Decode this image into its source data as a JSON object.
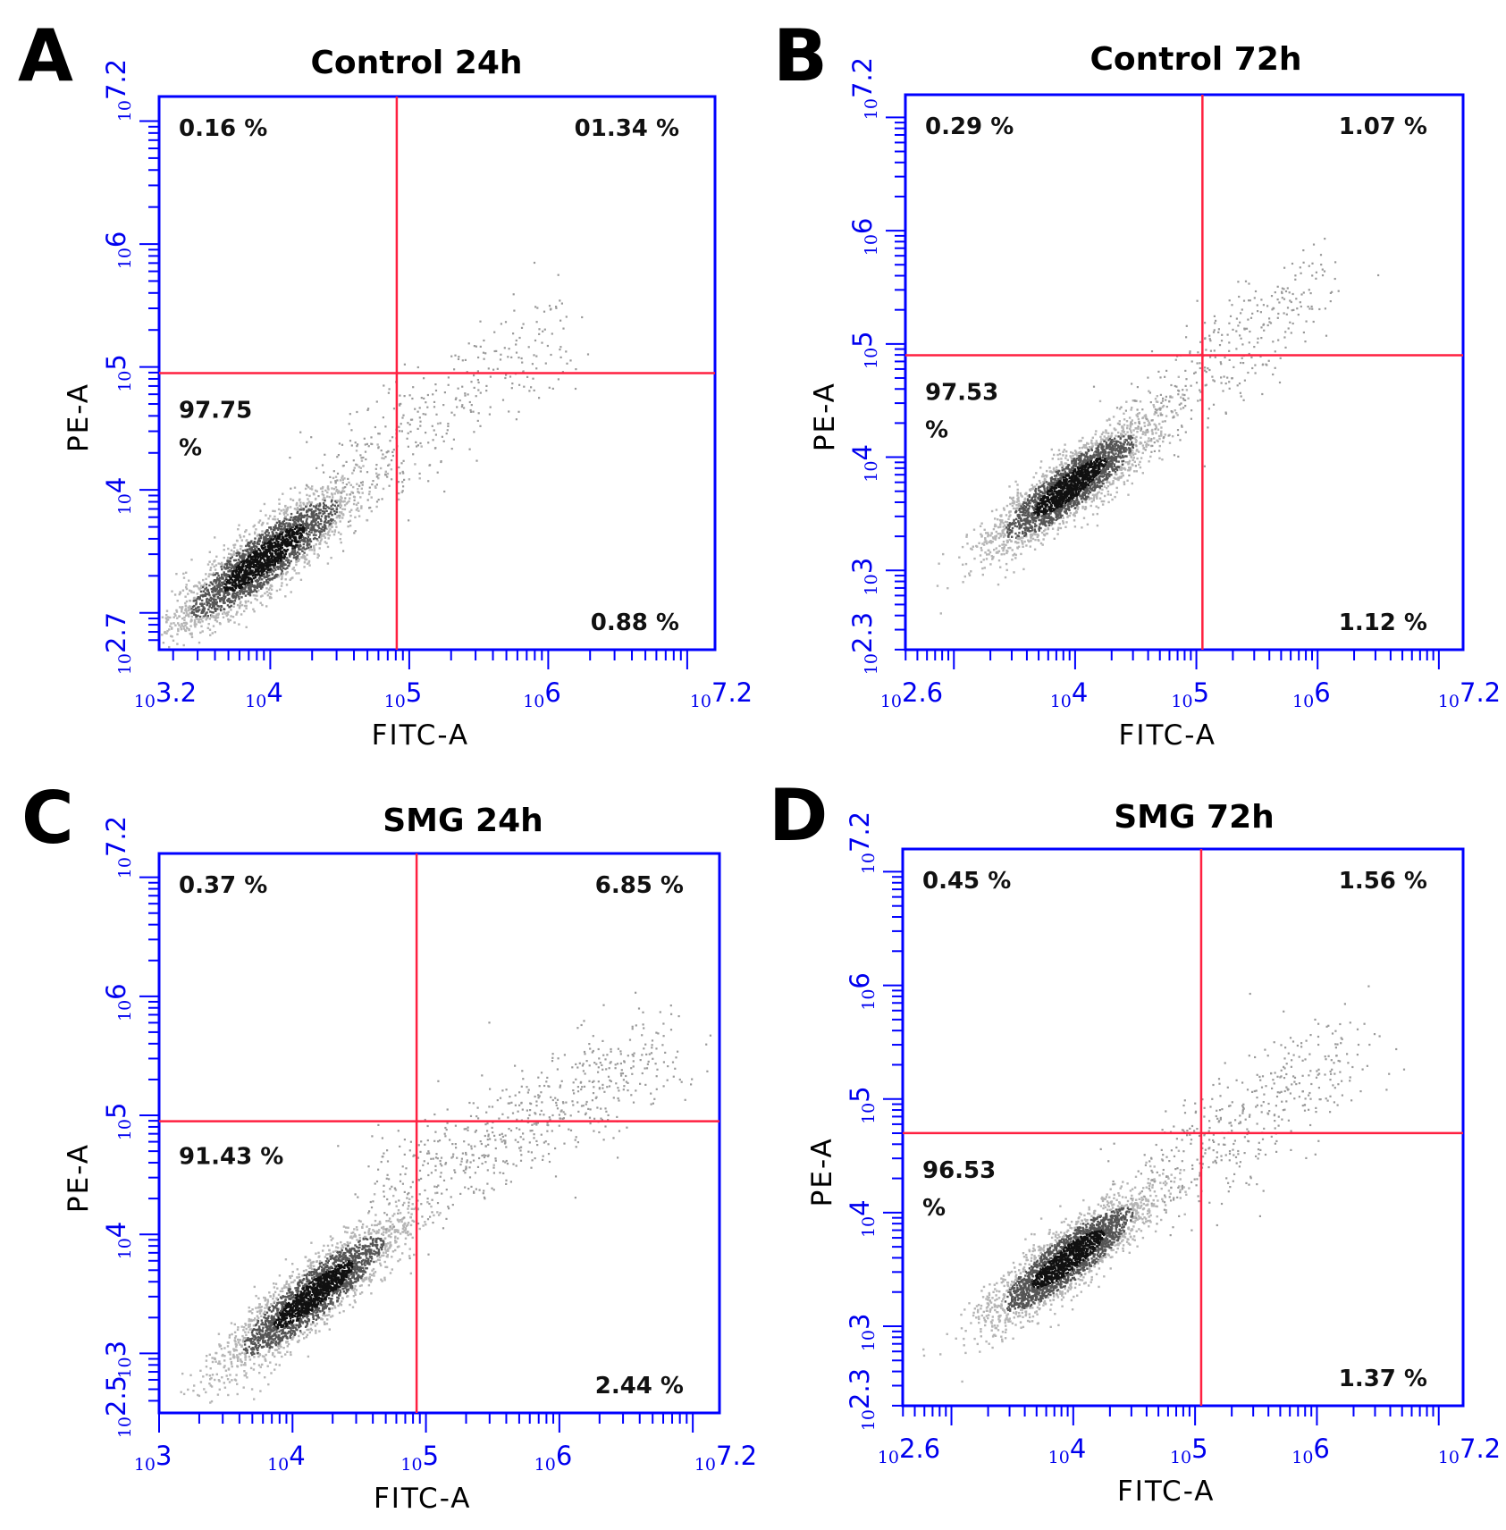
{
  "colors": {
    "axis": "#0000ff",
    "gate": "#ff2040",
    "dots": "#9a9a9a",
    "dense": "#111111"
  },
  "chart_data": [
    {
      "type": "scatter",
      "panel": "A",
      "title": "Control 24h",
      "xlabel": "FITC-A",
      "ylabel": "PE-A",
      "xlim": [
        3.2,
        7.2
      ],
      "ylim": [
        2.7,
        7.2
      ],
      "x_ticks": [
        {
          "base": "10",
          "exp": "3.2",
          "value": 3.2
        },
        {
          "base": "10",
          "exp": "4",
          "value": 4
        },
        {
          "base": "10",
          "exp": "5",
          "value": 5
        },
        {
          "base": "10",
          "exp": "6",
          "value": 6
        },
        {
          "base": "10",
          "exp": "7.2",
          "value": 7.2
        }
      ],
      "y_ticks": [
        {
          "base": "10",
          "exp": "2.7",
          "value": 2.7
        },
        {
          "base": "10",
          "exp": "4",
          "value": 4
        },
        {
          "base": "10",
          "exp": "5",
          "value": 5
        },
        {
          "base": "10",
          "exp": "6",
          "value": 6
        },
        {
          "base": "10",
          "exp": "7.2",
          "value": 7.2
        }
      ],
      "gate": {
        "x": 4.91,
        "y": 4.95
      },
      "quadrants": {
        "upper_left": "0.16  %",
        "upper_right": "01.34 %",
        "lower_left": [
          "97.75",
          "%"
        ],
        "lower_right": "0.88  %"
      },
      "population": {
        "cx": 3.95,
        "cy": 3.45,
        "count": 2600,
        "slope": 0.8
      },
      "tail": {
        "x0": 4.4,
        "y0": 4.0,
        "x1": 6.1,
        "y1": 5.35,
        "count": 360
      }
    },
    {
      "type": "scatter",
      "panel": "B",
      "title": "Control 72h",
      "xlabel": "FITC-A",
      "ylabel": "PE-A",
      "xlim": [
        2.6,
        7.2
      ],
      "ylim": [
        2.3,
        7.2
      ],
      "x_ticks": [
        {
          "base": "10",
          "exp": "2.6",
          "value": 2.6
        },
        {
          "base": "10",
          "exp": "4",
          "value": 4
        },
        {
          "base": "10",
          "exp": "5",
          "value": 5
        },
        {
          "base": "10",
          "exp": "6",
          "value": 6
        },
        {
          "base": "10",
          "exp": "7.2",
          "value": 7.2
        }
      ],
      "y_ticks": [
        {
          "base": "10",
          "exp": "2.3",
          "value": 2.3
        },
        {
          "base": "10",
          "exp": "3",
          "value": 3
        },
        {
          "base": "10",
          "exp": "4",
          "value": 4
        },
        {
          "base": "10",
          "exp": "5",
          "value": 5
        },
        {
          "base": "10",
          "exp": "6",
          "value": 6
        },
        {
          "base": "10",
          "exp": "7.2",
          "value": 7.2
        }
      ],
      "gate": {
        "x": 5.05,
        "y": 4.9
      },
      "quadrants": {
        "upper_left": "0.29  %",
        "upper_right": "1.07  %",
        "lower_left": [
          "97.53",
          "%"
        ],
        "lower_right": "1.12  %"
      },
      "population": {
        "cx": 3.95,
        "cy": 3.75,
        "count": 2600,
        "slope": 0.75
      },
      "tail": {
        "x0": 4.5,
        "y0": 4.2,
        "x1": 6.0,
        "y1": 5.6,
        "count": 340
      }
    },
    {
      "type": "scatter",
      "panel": "C",
      "title": "SMG 24h",
      "xlabel": "FITC-A",
      "ylabel": "PE-A",
      "xlim": [
        3,
        7.2
      ],
      "ylim": [
        2.5,
        7.2
      ],
      "x_ticks": [
        {
          "base": "10",
          "exp": "3",
          "value": 3
        },
        {
          "base": "10",
          "exp": "4",
          "value": 4
        },
        {
          "base": "10",
          "exp": "5",
          "value": 5
        },
        {
          "base": "10",
          "exp": "6",
          "value": 6
        },
        {
          "base": "10",
          "exp": "7.2",
          "value": 7.2
        }
      ],
      "y_ticks": [
        {
          "base": "10",
          "exp": "2.5",
          "value": 2.5
        },
        {
          "base": "10",
          "exp": "3",
          "value": 3
        },
        {
          "base": "10",
          "exp": "4",
          "value": 4
        },
        {
          "base": "10",
          "exp": "5",
          "value": 5
        },
        {
          "base": "10",
          "exp": "6",
          "value": 6
        },
        {
          "base": "10",
          "exp": "7.2",
          "value": 7.2
        }
      ],
      "gate": {
        "x": 4.93,
        "y": 4.95
      },
      "quadrants": {
        "upper_left": "0.37  %",
        "upper_right": "6.85  %",
        "lower_left": "91.43  %",
        "lower_right": "2.44  %"
      },
      "population": {
        "cx": 4.15,
        "cy": 3.5,
        "count": 2600,
        "slope": 0.85
      },
      "tail": {
        "x0": 4.7,
        "y0": 4.3,
        "x1": 6.8,
        "y1": 5.6,
        "count": 620
      }
    },
    {
      "type": "scatter",
      "panel": "D",
      "title": "SMG 72h",
      "xlabel": "FITC-A",
      "ylabel": "PE-A",
      "xlim": [
        2.6,
        7.2
      ],
      "ylim": [
        2.3,
        7.2
      ],
      "x_ticks": [
        {
          "base": "10",
          "exp": "2.6",
          "value": 2.6
        },
        {
          "base": "10",
          "exp": "4",
          "value": 4
        },
        {
          "base": "10",
          "exp": "5",
          "value": 5
        },
        {
          "base": "10",
          "exp": "6",
          "value": 6
        },
        {
          "base": "10",
          "exp": "7.2",
          "value": 7.2
        }
      ],
      "y_ticks": [
        {
          "base": "10",
          "exp": "2.3",
          "value": 2.3
        },
        {
          "base": "10",
          "exp": "3",
          "value": 3
        },
        {
          "base": "10",
          "exp": "4",
          "value": 4
        },
        {
          "base": "10",
          "exp": "5",
          "value": 5
        },
        {
          "base": "10",
          "exp": "6",
          "value": 6
        },
        {
          "base": "10",
          "exp": "7.2",
          "value": 7.2
        }
      ],
      "gate": {
        "x": 5.05,
        "y": 4.7
      },
      "quadrants": {
        "upper_left": "0.45  %",
        "upper_right": "1.56 %",
        "lower_left": [
          "96.53",
          "%"
        ],
        "lower_right": "1.37  %"
      },
      "population": {
        "cx": 3.95,
        "cy": 3.6,
        "count": 2600,
        "slope": 0.75
      },
      "tail": {
        "x0": 4.6,
        "y0": 4.2,
        "x1": 6.3,
        "y1": 5.5,
        "count": 420
      }
    }
  ]
}
